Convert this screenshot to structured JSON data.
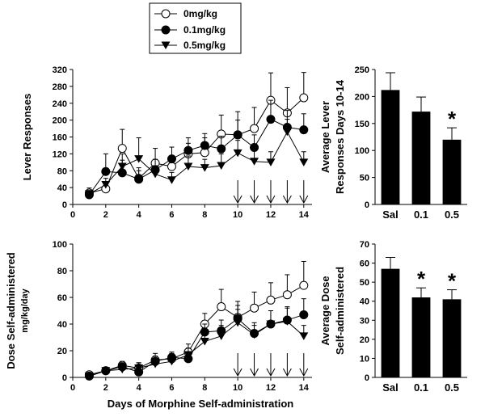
{
  "legend": {
    "entries": [
      {
        "label": "0mg/kg",
        "marker": "open-circle"
      },
      {
        "label": "0.1mg/kg",
        "marker": "filled-circle"
      },
      {
        "label": "0.5mg/kg",
        "marker": "filled-triangle-down"
      }
    ]
  },
  "shared_xlabel": "Days of Morphine Self-administration",
  "chart_data": [
    {
      "id": "lever-line",
      "type": "line",
      "ylabel": "Lever Responses",
      "ylim": [
        0,
        320
      ],
      "yticks": [
        0,
        40,
        80,
        120,
        160,
        200,
        240,
        280,
        320
      ],
      "xlim": [
        0,
        14.5
      ],
      "xticks": [
        0,
        2,
        4,
        6,
        8,
        10,
        12,
        14
      ],
      "x": [
        1,
        2,
        3,
        4,
        5,
        6,
        7,
        8,
        9,
        10,
        11,
        12,
        13,
        14
      ],
      "arrows_at": [
        10,
        11,
        12,
        13,
        14
      ],
      "series": [
        {
          "name": "0mg/kg",
          "marker": "open-circle",
          "values": [
            27,
            37,
            133,
            62,
            98,
            90,
            120,
            123,
            167,
            165,
            180,
            247,
            217,
            253
          ],
          "err": [
            12,
            10,
            45,
            25,
            35,
            20,
            25,
            35,
            45,
            55,
            50,
            65,
            60,
            60
          ]
        },
        {
          "name": "0.1mg/kg",
          "marker": "filled-circle",
          "values": [
            23,
            78,
            75,
            60,
            82,
            108,
            128,
            140,
            132,
            165,
            135,
            202,
            183,
            177
          ],
          "err": [
            10,
            42,
            30,
            20,
            25,
            28,
            30,
            28,
            30,
            35,
            30,
            45,
            40,
            38
          ]
        },
        {
          "name": "0.5mg/kg",
          "marker": "filled-triangle-down",
          "values": [
            25,
            47,
            90,
            108,
            72,
            58,
            90,
            87,
            92,
            122,
            102,
            100,
            172,
            100
          ],
          "err": [
            8,
            15,
            30,
            50,
            20,
            18,
            25,
            20,
            28,
            30,
            25,
            25,
            30,
            25
          ]
        }
      ]
    },
    {
      "id": "lever-bar",
      "type": "bar",
      "ylabel": "Average Lever Responses Days 10-14",
      "ylabel_lines": [
        "Average Lever",
        "Responses Days 10-14"
      ],
      "ylim": [
        0,
        250
      ],
      "yticks": [
        0,
        50,
        100,
        150,
        200,
        250
      ],
      "categories": [
        "Sal",
        "0.1",
        "0.5"
      ],
      "values": [
        212,
        172,
        120
      ],
      "err": [
        32,
        27,
        22
      ],
      "significance": [
        "",
        "",
        "*"
      ]
    },
    {
      "id": "dose-line",
      "type": "line",
      "ylabel": "Dose Self-administered mg/kg/day",
      "ylabel_main": "Dose Self-administered",
      "ylabel_sub": "mg/kg/day",
      "xlabel": "Days of Morphine Self-administration",
      "ylim": [
        0,
        100
      ],
      "yticks": [
        0,
        20,
        40,
        60,
        80,
        100
      ],
      "xlim": [
        0,
        14.5
      ],
      "xticks": [
        0,
        2,
        4,
        6,
        8,
        10,
        12,
        14
      ],
      "x": [
        1,
        2,
        3,
        4,
        5,
        6,
        7,
        8,
        9,
        10,
        11,
        12,
        13,
        14
      ],
      "arrows_at": [
        10,
        11,
        12,
        13,
        14
      ],
      "series": [
        {
          "name": "0mg/kg",
          "marker": "open-circle",
          "values": [
            2,
            5,
            9,
            7,
            13,
            14,
            19,
            40,
            53,
            45,
            52,
            58,
            62,
            69
          ],
          "err": [
            1.5,
            2,
            3,
            4,
            5,
            4,
            6,
            8,
            13,
            12,
            12,
            13,
            15,
            18
          ]
        },
        {
          "name": "0.1mg/kg",
          "marker": "filled-circle",
          "values": [
            1,
            5,
            8,
            4,
            12,
            15,
            14,
            34,
            35,
            44,
            33,
            40,
            43,
            47
          ],
          "err": [
            1,
            2,
            3,
            3,
            4,
            4,
            4,
            6,
            8,
            10,
            8,
            10,
            10,
            12
          ]
        },
        {
          "name": "0.5mg/kg",
          "marker": "filled-triangle-down",
          "values": [
            1,
            5,
            6,
            7,
            10,
            12,
            17,
            27,
            31,
            41,
            32,
            40,
            42,
            31
          ],
          "err": [
            1,
            2,
            3,
            4,
            4,
            5,
            5,
            6,
            8,
            10,
            7,
            10,
            10,
            8
          ]
        }
      ]
    },
    {
      "id": "dose-bar",
      "type": "bar",
      "ylabel": "Average Dose Self-administered",
      "ylabel_lines": [
        "Average Dose",
        "Self-administered"
      ],
      "ylim": [
        0,
        70
      ],
      "yticks": [
        0,
        10,
        20,
        30,
        40,
        50,
        60,
        70
      ],
      "categories": [
        "Sal",
        "0.1",
        "0.5"
      ],
      "values": [
        57,
        42,
        41
      ],
      "err": [
        6,
        5,
        5
      ],
      "significance": [
        "",
        "*",
        "*"
      ]
    }
  ]
}
